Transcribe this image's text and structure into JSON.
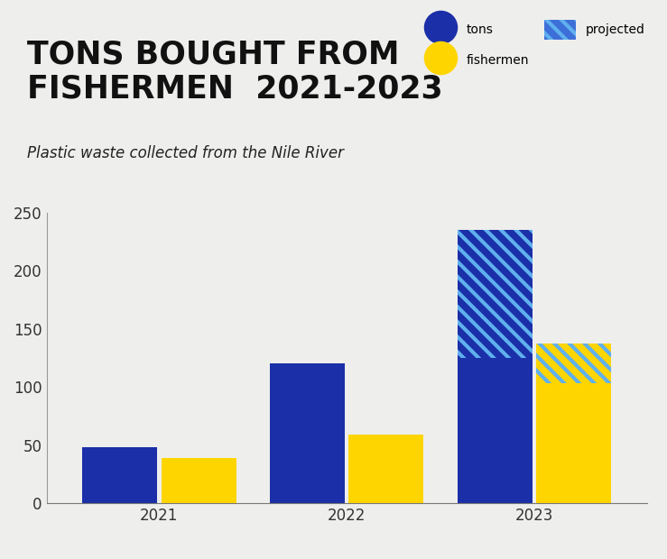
{
  "chart_data": {
    "type": "bar",
    "title": "TONS BOUGHT FROM\nFISHERMEN  2021-2023",
    "subtitle": "Plastic waste collected from the Nile River",
    "categories": [
      "2021",
      "2022",
      "2023"
    ],
    "series": [
      {
        "name": "tons",
        "color": "#1a2fa8",
        "values": [
          48,
          120,
          125
        ],
        "projected": [
          null,
          null,
          110
        ]
      },
      {
        "name": "fishermen",
        "color": "#ffd500",
        "values": [
          39,
          59,
          103
        ],
        "projected": [
          null,
          null,
          34
        ]
      }
    ],
    "projected_legend": {
      "label": "projected",
      "color": "#5fb0ee"
    },
    "stacked": true,
    "ylim": [
      0,
      250
    ],
    "yticks": [
      0,
      50,
      100,
      150,
      200,
      250
    ],
    "grid": false,
    "legend": "upper right"
  }
}
